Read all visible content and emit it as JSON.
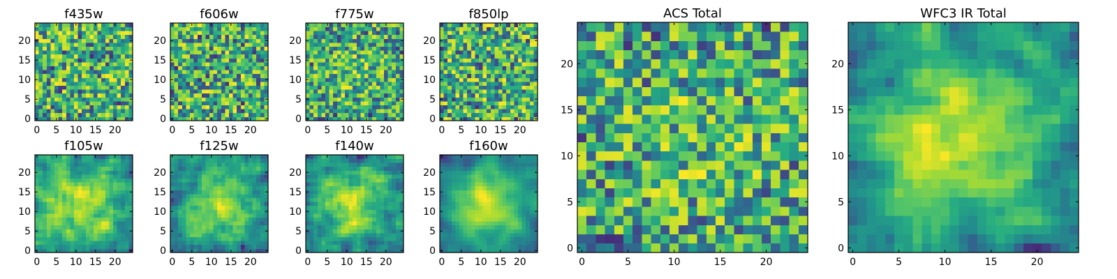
{
  "chart_data": [
    {
      "type": "heatmap",
      "title": "f435w",
      "xticks": [
        "0",
        "5",
        "10",
        "15",
        "20"
      ],
      "yticks": [
        "0",
        "5",
        "10",
        "15",
        "20"
      ],
      "xlim": [
        -0.5,
        24.5
      ],
      "ylim": [
        -0.5,
        24.5
      ],
      "shape": [
        25,
        25
      ],
      "colormap": "viridis"
    },
    {
      "type": "heatmap",
      "title": "f606w",
      "xticks": [
        "0",
        "5",
        "10",
        "15",
        "20"
      ],
      "yticks": [
        "0",
        "5",
        "10",
        "15",
        "20"
      ],
      "xlim": [
        -0.5,
        24.5
      ],
      "ylim": [
        -0.5,
        24.5
      ],
      "shape": [
        25,
        25
      ],
      "colormap": "viridis"
    },
    {
      "type": "heatmap",
      "title": "f775w",
      "xticks": [
        "0",
        "5",
        "10",
        "15",
        "20"
      ],
      "yticks": [
        "0",
        "5",
        "10",
        "15",
        "20"
      ],
      "xlim": [
        -0.5,
        24.5
      ],
      "ylim": [
        -0.5,
        24.5
      ],
      "shape": [
        25,
        25
      ],
      "colormap": "viridis"
    },
    {
      "type": "heatmap",
      "title": "f850lp",
      "xticks": [
        "0",
        "5",
        "10",
        "15",
        "20"
      ],
      "yticks": [
        "0",
        "5",
        "10",
        "15",
        "20"
      ],
      "xlim": [
        -0.5,
        24.5
      ],
      "ylim": [
        -0.5,
        24.5
      ],
      "shape": [
        25,
        25
      ],
      "colormap": "viridis"
    },
    {
      "type": "heatmap",
      "title": "f105w",
      "xticks": [
        "0",
        "5",
        "10",
        "15",
        "20"
      ],
      "yticks": [
        "0",
        "5",
        "10",
        "15",
        "20"
      ],
      "xlim": [
        -0.5,
        24.5
      ],
      "ylim": [
        -0.5,
        24.5
      ],
      "shape": [
        25,
        25
      ],
      "colormap": "viridis"
    },
    {
      "type": "heatmap",
      "title": "f125w",
      "xticks": [
        "0",
        "5",
        "10",
        "15",
        "20"
      ],
      "yticks": [
        "0",
        "5",
        "10",
        "15",
        "20"
      ],
      "xlim": [
        -0.5,
        24.5
      ],
      "ylim": [
        -0.5,
        24.5
      ],
      "shape": [
        25,
        25
      ],
      "colormap": "viridis"
    },
    {
      "type": "heatmap",
      "title": "f140w",
      "xticks": [
        "0",
        "5",
        "10",
        "15",
        "20"
      ],
      "yticks": [
        "0",
        "5",
        "10",
        "15",
        "20"
      ],
      "xlim": [
        -0.5,
        24.5
      ],
      "ylim": [
        -0.5,
        24.5
      ],
      "shape": [
        25,
        25
      ],
      "colormap": "viridis"
    },
    {
      "type": "heatmap",
      "title": "f160w",
      "xticks": [
        "0",
        "5",
        "10",
        "15",
        "20"
      ],
      "yticks": [
        "0",
        "5",
        "10",
        "15",
        "20"
      ],
      "xlim": [
        -0.5,
        24.5
      ],
      "ylim": [
        -0.5,
        24.5
      ],
      "shape": [
        25,
        25
      ],
      "colormap": "viridis"
    },
    {
      "type": "heatmap",
      "title": "ACS Total",
      "xticks": [
        "0",
        "5",
        "10",
        "15",
        "20"
      ],
      "yticks": [
        "0",
        "5",
        "10",
        "15",
        "20"
      ],
      "xlim": [
        -0.5,
        24.5
      ],
      "ylim": [
        -0.5,
        24.5
      ],
      "shape": [
        25,
        25
      ],
      "colormap": "viridis"
    },
    {
      "type": "heatmap",
      "title": "WFC3 IR Total",
      "xticks": [
        "0",
        "5",
        "10",
        "15",
        "20"
      ],
      "yticks": [
        "0",
        "5",
        "10",
        "15",
        "20"
      ],
      "xlim": [
        -0.5,
        24.5
      ],
      "ylim": [
        -0.5,
        24.5
      ],
      "shape": [
        25,
        25
      ],
      "colormap": "viridis"
    }
  ]
}
